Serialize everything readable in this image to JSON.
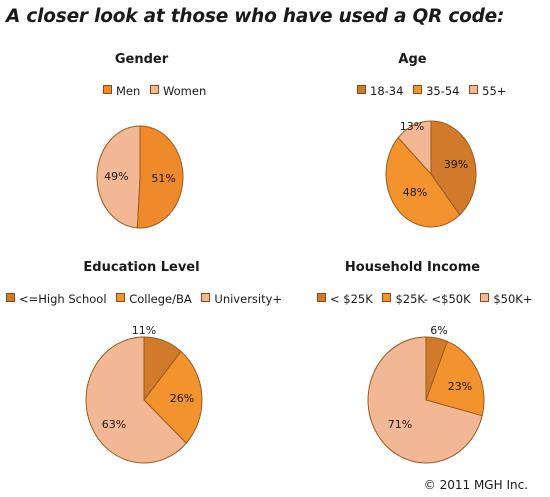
{
  "page": {
    "headline": "A closer look at those who have used a QR code:",
    "copyright": "© 2011 MGH Inc."
  },
  "colors": {
    "dark": "#d27a2c",
    "mid": "#f2932e",
    "light": "#f2b896",
    "edge": "#9a5c1e"
  },
  "chart_data": [
    {
      "type": "pie",
      "title": "Gender",
      "categories": [
        "Men",
        "Women"
      ],
      "values": [
        51,
        49
      ],
      "labels": [
        "51%",
        "49%"
      ],
      "colors": [
        "#ef8a2a",
        "#f2b896"
      ],
      "legend": "top"
    },
    {
      "type": "pie",
      "title": "Age",
      "categories": [
        "18-34",
        "35-54",
        "55+"
      ],
      "values": [
        39,
        48,
        13
      ],
      "labels": [
        "39%",
        "48%",
        "13%"
      ],
      "colors": [
        "#d27a2c",
        "#f2932e",
        "#f2b896"
      ],
      "legend": "top"
    },
    {
      "type": "pie",
      "title": "Education Level",
      "categories": [
        "<=High School",
        "College/BA",
        "University+"
      ],
      "values": [
        11,
        26,
        63
      ],
      "labels": [
        "11%",
        "26%",
        "63%"
      ],
      "colors": [
        "#d27a2c",
        "#f2932e",
        "#f2b896"
      ],
      "legend": "top"
    },
    {
      "type": "pie",
      "title": "Household Income",
      "categories": [
        "< $25K",
        "$25K- <$50K",
        "$50K+"
      ],
      "values": [
        6,
        23,
        71
      ],
      "labels": [
        "6%",
        "23%",
        "71%"
      ],
      "colors": [
        "#d27a2c",
        "#f2932e",
        "#f2b896"
      ],
      "legend": "top"
    }
  ]
}
